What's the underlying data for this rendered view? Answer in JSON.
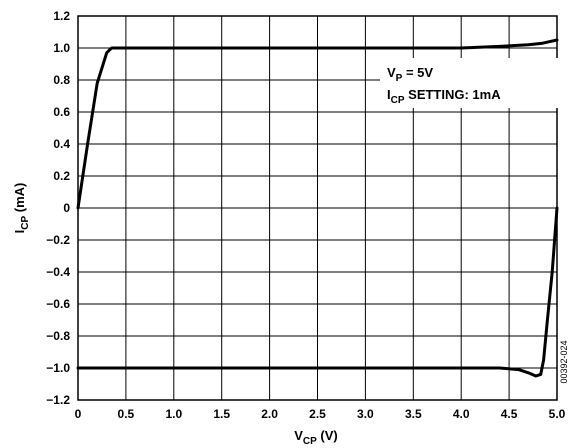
{
  "chart_data": {
    "type": "line",
    "xlabel": {
      "main": "V",
      "sub": "CP",
      "unit": " (V)"
    },
    "ylabel": {
      "main": "I",
      "sub": "CP",
      "unit": " (mA)"
    },
    "xlim": [
      0,
      5.0
    ],
    "ylim": [
      -1.2,
      1.2
    ],
    "grid": true,
    "x_ticks": [
      "0",
      "0.5",
      "1.0",
      "1.5",
      "2.0",
      "2.5",
      "3.0",
      "3.5",
      "4.0",
      "4.5",
      "5.0"
    ],
    "y_ticks": [
      "1.2",
      "1.0",
      "0.8",
      "0.6",
      "0.4",
      "0.2",
      "0",
      "−0.2",
      "−0.4",
      "−0.6",
      "−0.8",
      "−1.0",
      "−1.2"
    ],
    "annotation": {
      "line1": {
        "main": "V",
        "sub": "P",
        "rest": " = 5V"
      },
      "line2": {
        "main": "I",
        "sub": "CP",
        "rest": " SETTING: 1mA"
      }
    },
    "figure_code": "00392-024",
    "series": [
      {
        "values": [
          [
            0,
            0
          ],
          [
            0.1,
            0.4
          ],
          [
            0.2,
            0.78
          ],
          [
            0.3,
            0.97
          ],
          [
            0.35,
            1.0
          ],
          [
            1.0,
            1.0
          ],
          [
            2.0,
            1.0
          ],
          [
            3.0,
            1.0
          ],
          [
            4.0,
            1.0
          ],
          [
            4.4,
            1.01
          ],
          [
            4.7,
            1.02
          ],
          [
            4.85,
            1.03
          ],
          [
            5.0,
            1.05
          ]
        ]
      },
      {
        "values": [
          [
            0,
            -1.0
          ],
          [
            1.0,
            -1.0
          ],
          [
            2.0,
            -1.0
          ],
          [
            3.0,
            -1.0
          ],
          [
            4.0,
            -1.0
          ],
          [
            4.4,
            -1.0
          ],
          [
            4.6,
            -1.01
          ],
          [
            4.7,
            -1.03
          ],
          [
            4.78,
            -1.05
          ],
          [
            4.83,
            -1.04
          ],
          [
            4.86,
            -0.95
          ],
          [
            4.9,
            -0.7
          ],
          [
            4.95,
            -0.4
          ],
          [
            5.0,
            0
          ]
        ]
      }
    ]
  }
}
